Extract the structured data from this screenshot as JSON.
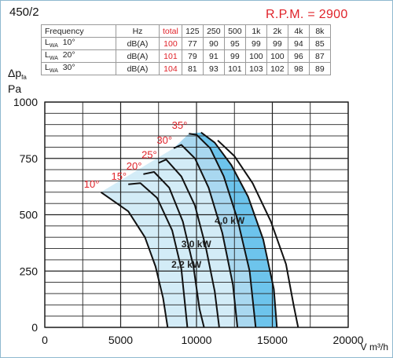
{
  "model": "450/2",
  "rpm_label": "R.P.M. = 2900",
  "noise_table": {
    "header": [
      "Frequency",
      "Hz",
      "total",
      "125",
      "250",
      "500",
      "1k",
      "2k",
      "4k",
      "8k"
    ],
    "rows": [
      {
        "label": "L",
        "label_sub": "WA",
        "angle": "10°",
        "unit": "dB(A)",
        "total": "100",
        "values": [
          "77",
          "90",
          "95",
          "99",
          "99",
          "94",
          "85"
        ]
      },
      {
        "label": "L",
        "label_sub": "WA",
        "angle": "20°",
        "unit": "dB(A)",
        "total": "101",
        "values": [
          "79",
          "91",
          "99",
          "100",
          "100",
          "96",
          "87"
        ]
      },
      {
        "label": "L",
        "label_sub": "WA",
        "angle": "30°",
        "unit": "dB(A)",
        "total": "104",
        "values": [
          "81",
          "93",
          "101",
          "103",
          "102",
          "98",
          "89"
        ]
      }
    ]
  },
  "chart_data": {
    "type": "line",
    "ylabel_main": "Δp",
    "ylabel_sub": "fa",
    "ylabel_unit": "Pa",
    "xlabel": "V m³/h",
    "xlim": [
      0,
      20000
    ],
    "ylim": [
      0,
      1000
    ],
    "x_ticks": [
      "0",
      "5000",
      "10000",
      "15000",
      "20000"
    ],
    "y_ticks": [
      "0",
      "250",
      "500",
      "750",
      "1000"
    ],
    "grid": true,
    "series": [
      {
        "name": "10°",
        "points": [
          [
            3700,
            600
          ],
          [
            5500,
            515
          ],
          [
            6600,
            400
          ],
          [
            7300,
            270
          ],
          [
            7800,
            130
          ],
          [
            8100,
            0
          ]
        ]
      },
      {
        "name": "15°",
        "points": [
          [
            5500,
            635
          ],
          [
            6300,
            640
          ],
          [
            7400,
            575
          ],
          [
            8400,
            430
          ],
          [
            9000,
            260
          ],
          [
            9400,
            0
          ]
        ]
      },
      {
        "name": "20°",
        "points": [
          [
            6500,
            680
          ],
          [
            7200,
            690
          ],
          [
            8200,
            620
          ],
          [
            9100,
            470
          ],
          [
            9800,
            270
          ],
          [
            10200,
            80
          ],
          [
            10500,
            0
          ]
        ]
      },
      {
        "name": "25°",
        "points": [
          [
            7500,
            730
          ],
          [
            8000,
            745
          ],
          [
            9000,
            670
          ],
          [
            9900,
            540
          ],
          [
            10600,
            360
          ],
          [
            11200,
            160
          ],
          [
            11500,
            0
          ]
        ]
      },
      {
        "name": "30°",
        "points": [
          [
            8500,
            795
          ],
          [
            9000,
            810
          ],
          [
            9900,
            750
          ],
          [
            10800,
            620
          ],
          [
            11700,
            420
          ],
          [
            12400,
            190
          ],
          [
            12700,
            0
          ]
        ]
      },
      {
        "name": "35°",
        "points": [
          [
            9500,
            860
          ],
          [
            10000,
            855
          ],
          [
            10900,
            795
          ],
          [
            11800,
            670
          ],
          [
            12700,
            480
          ],
          [
            13500,
            250
          ],
          [
            13900,
            0
          ]
        ]
      },
      {
        "name": "",
        "points": [
          [
            10300,
            865
          ],
          [
            11200,
            820
          ],
          [
            12300,
            720
          ],
          [
            13400,
            580
          ],
          [
            14400,
            390
          ],
          [
            15100,
            170
          ],
          [
            15300,
            0
          ]
        ]
      },
      {
        "name": "",
        "points": [
          [
            11400,
            830
          ],
          [
            12500,
            760
          ],
          [
            13700,
            640
          ],
          [
            14900,
            470
          ],
          [
            15900,
            280
          ],
          [
            16400,
            100
          ],
          [
            16700,
            0
          ]
        ]
      }
    ],
    "power_labels": [
      {
        "text": "2,2 kW",
        "x": 8350,
        "y": 265
      },
      {
        "text": "3,0 kW",
        "x": 9000,
        "y": 355
      },
      {
        "text": "4,0 kW",
        "x": 11200,
        "y": 460
      }
    ]
  },
  "colors": {
    "light_region": "#d3ecf7",
    "mid_region": "#a9d8f0",
    "dark_region": "#6dc4ec",
    "curve": "#111111",
    "angle_label": "#e0232a",
    "grid": "#222222"
  }
}
